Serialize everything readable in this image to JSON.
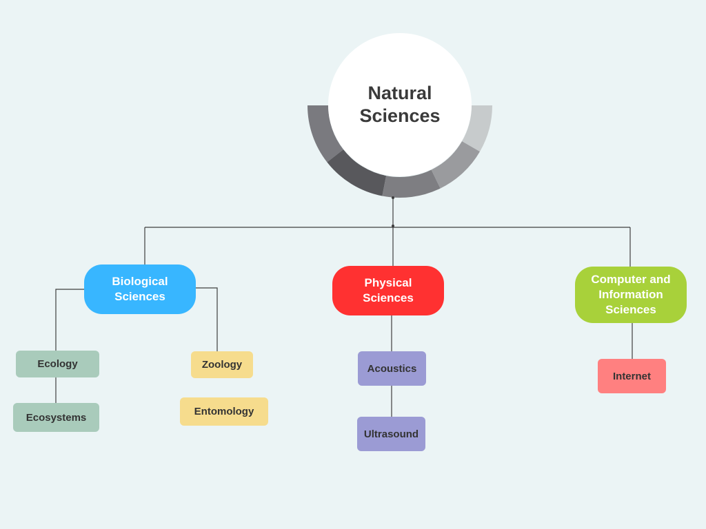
{
  "root": {
    "label": "Natural Sciences"
  },
  "categories": [
    {
      "id": "biological",
      "label": "Biological Sciences",
      "color": "#38b6ff"
    },
    {
      "id": "physical",
      "label": "Physical Sciences",
      "color": "#ff3131"
    },
    {
      "id": "computer",
      "label": "Computer and Information Sciences",
      "color": "#a8d13a"
    }
  ],
  "leaves": {
    "ecology": {
      "label": "Ecology",
      "color": "#a9cbbb"
    },
    "ecosystems": {
      "label": "Ecosystems",
      "color": "#a9cbbb"
    },
    "zoology": {
      "label": "Zoology",
      "color": "#f6dc8d"
    },
    "entomology": {
      "label": "Entomology",
      "color": "#f6dc8d"
    },
    "acoustics": {
      "label": "Acoustics",
      "color": "#9b9bd4"
    },
    "ultrasound": {
      "label": "Ultrasound",
      "color": "#9b9bd4"
    },
    "internet": {
      "label": "Internet",
      "color": "#ff8080"
    }
  },
  "ring_colors": [
    "#7a7a7f",
    "#58585c",
    "#7e7e82",
    "#9a9b9e",
    "#c7cbcc"
  ]
}
